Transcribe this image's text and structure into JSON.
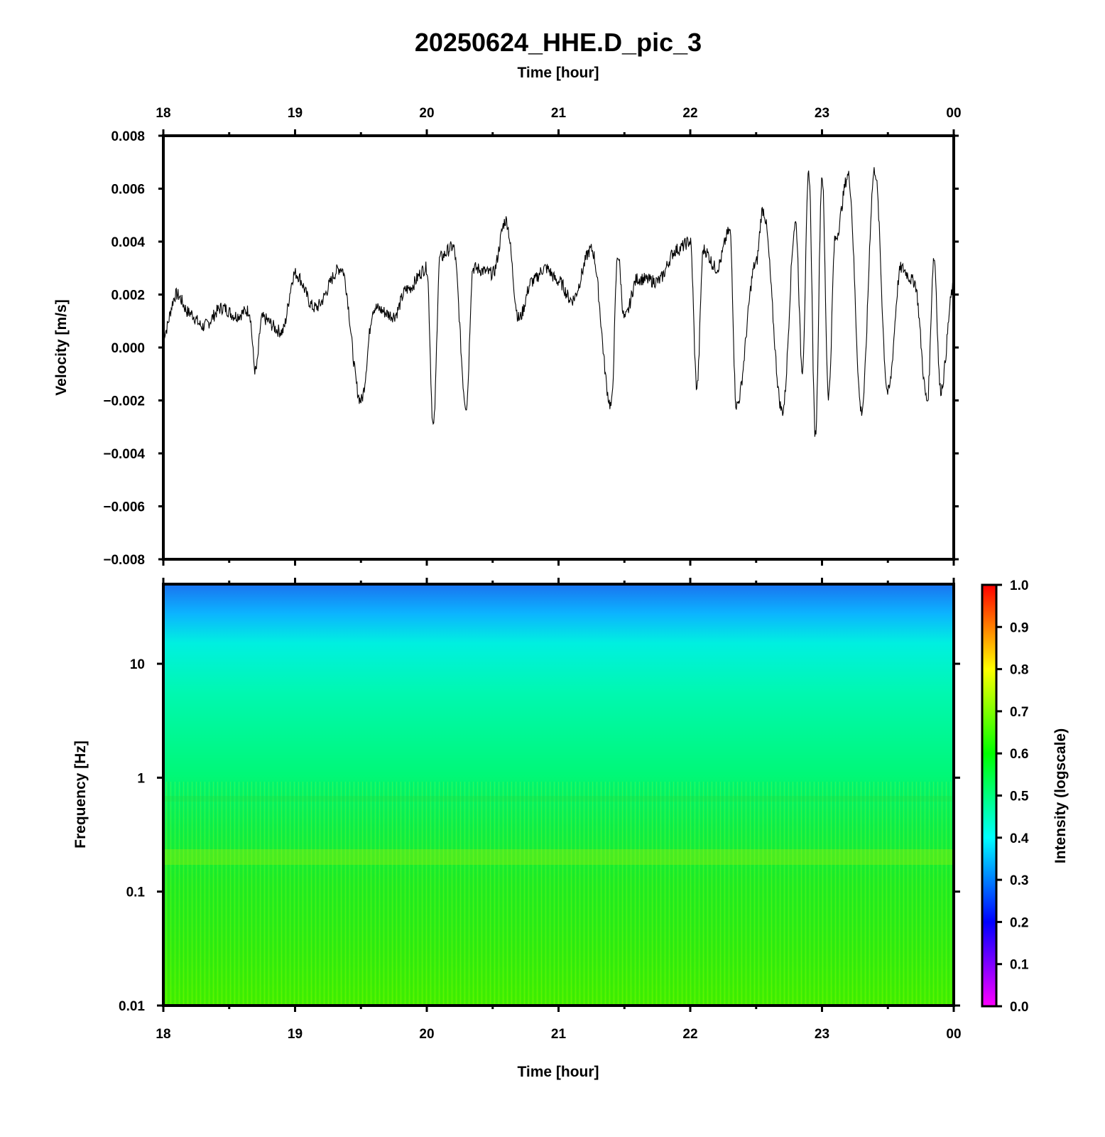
{
  "title": "20250624_HHE.D_pic_3",
  "top_xlabel": "Time [hour]",
  "bottom_xlabel": "Time [hour]",
  "x_ticks": [
    "18",
    "19",
    "20",
    "21",
    "22",
    "23",
    "00"
  ],
  "chart_data": [
    {
      "type": "line",
      "series": [
        {
          "values_note": "",
          "color": "#000000"
        }
      ],
      "xlabel": "Time [hour]",
      "ylabel": "Velocity [m/s]",
      "xlim": [
        18,
        24
      ],
      "ylim": [
        -0.008,
        0.008
      ],
      "yticks": [
        "0.008",
        "0.006",
        "0.004",
        "0.002",
        "0.000",
        "−0.002",
        "−0.004",
        "−0.006",
        "−0.008"
      ],
      "x": [
        18.0,
        18.1,
        18.2,
        18.3,
        18.45,
        18.55,
        18.65,
        18.7,
        18.75,
        18.9,
        19.0,
        19.15,
        19.35,
        19.5,
        19.6,
        19.75,
        19.85,
        20.0,
        20.05,
        20.1,
        20.2,
        20.3,
        20.35,
        20.5,
        20.6,
        20.7,
        20.8,
        20.9,
        21.0,
        21.1,
        21.25,
        21.4,
        21.45,
        21.5,
        21.6,
        21.75,
        21.9,
        22.0,
        22.05,
        22.1,
        22.2,
        22.3,
        22.35,
        22.5,
        22.55,
        22.7,
        22.8,
        22.85,
        22.9,
        22.95,
        23.0,
        23.05,
        23.1,
        23.2,
        23.3,
        23.4,
        23.5,
        23.6,
        23.7,
        23.8,
        23.85,
        23.9,
        24.0
      ],
      "y": [
        0.0005,
        0.002,
        0.0013,
        0.0008,
        0.0015,
        0.0012,
        0.0014,
        -0.0009,
        0.0011,
        0.0006,
        0.0028,
        0.0015,
        0.003,
        -0.002,
        0.0015,
        0.0012,
        0.0022,
        0.003,
        -0.003,
        0.0034,
        0.0038,
        -0.0022,
        0.003,
        0.0028,
        0.0048,
        0.0011,
        0.0025,
        0.003,
        0.0025,
        0.0018,
        0.0037,
        -0.0022,
        0.0035,
        0.0011,
        0.0026,
        0.0025,
        0.0037,
        0.004,
        -0.0015,
        0.0037,
        0.003,
        0.0044,
        -0.0022,
        0.0032,
        0.0052,
        -0.0024,
        0.0047,
        -0.0008,
        0.0066,
        -0.0033,
        0.0065,
        -0.0018,
        0.0041,
        0.0065,
        -0.0024,
        0.0067,
        -0.0017,
        0.003,
        0.0025,
        -0.002,
        0.0034,
        -0.0016,
        0.0023
      ]
    },
    {
      "type": "heatmap",
      "xlabel": "Time [hour]",
      "ylabel": "Frequency [Hz]",
      "xlim": [
        18,
        24
      ],
      "ylim": [
        0.01,
        50
      ],
      "yscale": "log",
      "yticks": [
        "10",
        "1",
        "0.1",
        "0.01"
      ],
      "intensity_by_frequency_hz": [
        [
          0.01,
          0.62
        ],
        [
          0.03,
          0.6
        ],
        [
          0.1,
          0.58
        ],
        [
          0.2,
          0.65
        ],
        [
          0.4,
          0.57
        ],
        [
          1,
          0.53
        ],
        [
          3,
          0.5
        ],
        [
          10,
          0.47
        ],
        [
          20,
          0.42
        ],
        [
          40,
          0.35
        ],
        [
          50,
          0.31
        ]
      ],
      "colorbar": {
        "label": "Intensity (logscale)",
        "range": [
          0.0,
          1.0
        ],
        "ticks": [
          "1.0",
          "0.9",
          "0.8",
          "0.7",
          "0.6",
          "0.5",
          "0.4",
          "0.3",
          "0.2",
          "0.1",
          "0.0"
        ],
        "colormap": "rainbow",
        "colors": [
          "#ff00ff",
          "#0000ff",
          "#00ffff",
          "#00ff00",
          "#ffff00",
          "#ff0000"
        ]
      }
    }
  ]
}
